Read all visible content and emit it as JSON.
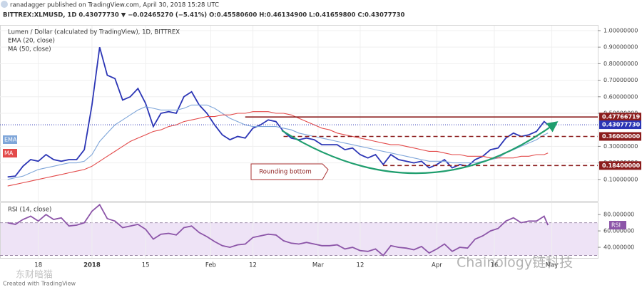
{
  "header": {
    "publisher": "ranadagger published on TradingView.com, April 30, 2018 15:28 UTC",
    "symbol_line": "BITTREX:XLMUSD, 1D 0.43077730 ▼ −0.02465270 (−5.41%) O:0.45580600 H:0.46134900 L:0.41659800 C:0.43077730"
  },
  "chart_data": [
    {
      "type": "line",
      "title": "Lumen / Dollar (calculated by TradingView), 1D, BITTREX",
      "x": [
        0,
        2,
        4,
        6,
        8,
        10,
        12,
        14,
        16,
        18,
        20,
        22,
        24,
        26,
        28,
        30,
        32,
        34,
        36,
        38,
        40,
        42,
        44,
        46,
        48,
        50,
        52,
        54,
        56,
        58,
        60,
        62,
        64,
        66,
        68,
        70,
        72,
        74,
        76,
        78,
        80,
        82,
        84,
        86,
        88,
        90,
        92,
        94,
        96,
        98,
        100,
        102,
        104,
        106,
        108,
        110,
        112,
        114,
        116,
        118,
        120,
        122,
        124,
        126,
        128,
        130,
        132,
        134,
        136,
        138,
        140,
        141
      ],
      "xlim": [
        -2,
        154
      ],
      "xticks": [
        {
          "value": 8,
          "label": "18"
        },
        {
          "value": 22,
          "label": "2018"
        },
        {
          "value": 36,
          "label": "15"
        },
        {
          "value": 53,
          "label": "Feb"
        },
        {
          "value": 64,
          "label": "12"
        },
        {
          "value": 81,
          "label": "Mar"
        },
        {
          "value": 92,
          "label": "12"
        },
        {
          "value": 112,
          "label": "Apr"
        },
        {
          "value": 127,
          "label": "16"
        },
        {
          "value": 142,
          "label": "May"
        }
      ],
      "ylim": [
        -0.03,
        1.03
      ],
      "yticks": [
        {
          "value": 1,
          "label": "1.00000000"
        },
        {
          "value": 0.9,
          "label": "0.90000000"
        },
        {
          "value": 0.8,
          "label": "0.80000000"
        },
        {
          "value": 0.7,
          "label": "0.70000000"
        },
        {
          "value": 0.6,
          "label": "0.60000000"
        },
        {
          "value": 0.5,
          "label": "0.50000000"
        },
        {
          "value": 0.3,
          "label": "0.30000000"
        },
        {
          "value": 0.2,
          "label": "0.20000000"
        },
        {
          "value": 0.1,
          "label": "0.10000000"
        }
      ],
      "grid": true,
      "series": [
        {
          "color": "#2b35b5",
          "values": [
            0.115,
            0.12,
            0.18,
            0.22,
            0.21,
            0.25,
            0.22,
            0.21,
            0.22,
            0.22,
            0.28,
            0.55,
            0.9,
            0.73,
            0.71,
            0.58,
            0.6,
            0.65,
            0.56,
            0.42,
            0.5,
            0.51,
            0.5,
            0.6,
            0.63,
            0.55,
            0.5,
            0.43,
            0.37,
            0.34,
            0.36,
            0.35,
            0.41,
            0.43,
            0.46,
            0.45,
            0.39,
            0.35,
            0.34,
            0.35,
            0.34,
            0.31,
            0.31,
            0.31,
            0.28,
            0.29,
            0.25,
            0.23,
            0.25,
            0.19,
            0.25,
            0.22,
            0.21,
            0.2,
            0.21,
            0.17,
            0.19,
            0.22,
            0.17,
            0.19,
            0.18,
            0.22,
            0.24,
            0.28,
            0.29,
            0.35,
            0.38,
            0.36,
            0.37,
            0.39,
            0.45,
            0.43
          ]
        },
        {
          "name": "EMA (20, close)",
          "tag": "EMA",
          "color": "#7fa6d9",
          "values": [
            0.1,
            0.11,
            0.12,
            0.14,
            0.16,
            0.17,
            0.18,
            0.19,
            0.2,
            0.2,
            0.21,
            0.25,
            0.33,
            0.38,
            0.43,
            0.46,
            0.49,
            0.52,
            0.54,
            0.53,
            0.52,
            0.52,
            0.52,
            0.53,
            0.55,
            0.55,
            0.55,
            0.53,
            0.5,
            0.47,
            0.45,
            0.43,
            0.42,
            0.42,
            0.42,
            0.42,
            0.41,
            0.4,
            0.38,
            0.37,
            0.36,
            0.35,
            0.34,
            0.33,
            0.32,
            0.31,
            0.3,
            0.29,
            0.28,
            0.27,
            0.26,
            0.25,
            0.24,
            0.23,
            0.22,
            0.21,
            0.21,
            0.21,
            0.2,
            0.2,
            0.2,
            0.2,
            0.21,
            0.22,
            0.23,
            0.26,
            0.28,
            0.3,
            0.32,
            0.34,
            0.37,
            0.38
          ]
        },
        {
          "name": "MA (50, close)",
          "tag": "MA",
          "color": "#e34a4a",
          "values": [
            0.06,
            0.07,
            0.08,
            0.09,
            0.1,
            0.11,
            0.12,
            0.13,
            0.14,
            0.15,
            0.16,
            0.18,
            0.21,
            0.24,
            0.27,
            0.3,
            0.33,
            0.35,
            0.37,
            0.39,
            0.4,
            0.42,
            0.43,
            0.45,
            0.46,
            0.47,
            0.48,
            0.48,
            0.49,
            0.49,
            0.5,
            0.5,
            0.51,
            0.51,
            0.51,
            0.5,
            0.5,
            0.49,
            0.47,
            0.45,
            0.43,
            0.41,
            0.4,
            0.38,
            0.37,
            0.36,
            0.35,
            0.34,
            0.33,
            0.32,
            0.31,
            0.31,
            0.3,
            0.29,
            0.28,
            0.27,
            0.27,
            0.26,
            0.25,
            0.25,
            0.24,
            0.24,
            0.24,
            0.23,
            0.23,
            0.23,
            0.23,
            0.24,
            0.24,
            0.25,
            0.25,
            0.26
          ]
        }
      ],
      "levels": [
        {
          "value": 0.47766719,
          "label": "0.47766719",
          "from": 62,
          "style": "solid",
          "color": "#8b1c1c"
        },
        {
          "value": 0.4307773,
          "label": "0.43077730",
          "style": "dotted",
          "color": "#2b35b5"
        },
        {
          "value": 0.36,
          "label": "0.36000000",
          "from": 72,
          "style": "dashed",
          "color": "#8b1c1c"
        },
        {
          "value": 0.184,
          "label": "0.18400000",
          "from": 98,
          "style": "dashed",
          "color": "#8b1c1c"
        }
      ],
      "annotations": [
        "Rounding bottom"
      ]
    },
    {
      "type": "line",
      "title": "RSI (14, close)",
      "tag": "RSI",
      "x": [
        0,
        2,
        4,
        6,
        8,
        10,
        12,
        14,
        16,
        18,
        20,
        22,
        24,
        26,
        28,
        30,
        32,
        34,
        36,
        38,
        40,
        42,
        44,
        46,
        48,
        50,
        52,
        54,
        56,
        58,
        60,
        62,
        64,
        66,
        68,
        70,
        72,
        74,
        76,
        78,
        80,
        82,
        84,
        86,
        88,
        90,
        92,
        94,
        96,
        98,
        100,
        102,
        104,
        106,
        108,
        110,
        112,
        114,
        116,
        118,
        120,
        122,
        124,
        126,
        128,
        130,
        132,
        134,
        136,
        138,
        140,
        141
      ],
      "xlim": [
        -2,
        154
      ],
      "ylim": [
        27,
        94
      ],
      "yticks": [
        {
          "value": 80,
          "label": "80.000000"
        },
        {
          "value": 60,
          "label": "60.000000"
        },
        {
          "value": 40,
          "label": "40.000000"
        }
      ],
      "band": [
        30,
        70
      ],
      "series": [
        {
          "color": "#8c55a8",
          "values": [
            70,
            68,
            74,
            78,
            72,
            80,
            74,
            76,
            66,
            67,
            70,
            84,
            92,
            75,
            72,
            64,
            66,
            68,
            62,
            50,
            56,
            57,
            55,
            64,
            66,
            58,
            53,
            47,
            42,
            40,
            43,
            44,
            52,
            54,
            56,
            55,
            48,
            45,
            44,
            46,
            44,
            42,
            42,
            43,
            38,
            40,
            36,
            35,
            38,
            30,
            42,
            40,
            39,
            37,
            41,
            33,
            38,
            44,
            35,
            40,
            39,
            50,
            54,
            60,
            63,
            72,
            76,
            70,
            72,
            72,
            78,
            67
          ]
        }
      ]
    }
  ],
  "footer": "Created with TradingView",
  "watermarks": [
    "Chainology链科技",
    "东财暗猫"
  ]
}
